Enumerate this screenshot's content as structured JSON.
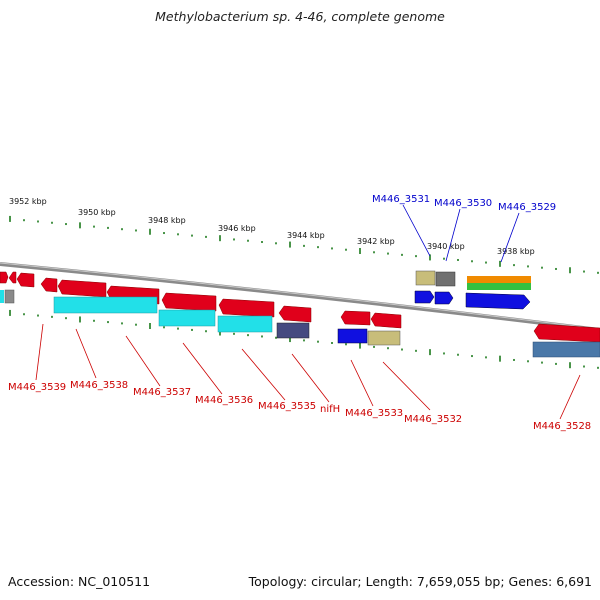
{
  "title": "Methylobacterium sp. 4-46, complete genome",
  "footer": {
    "accession": "Accession: NC_010511",
    "topology": "Topology: circular; Length: 7,659,055 bp; Genes: 6,691"
  },
  "scale_labels": [
    "3952 kbp",
    "3950 kbp",
    "3948 kbp",
    "3946 kbp",
    "3944 kbp",
    "3942 kbp",
    "3940 kbp",
    "3938 kbp"
  ],
  "gene_labels_red": [
    "M446_3539",
    "M446_3538",
    "M446_3537",
    "M446_3536",
    "M446_3535",
    "nifH",
    "M446_3533",
    "M446_3532",
    "M446_3528"
  ],
  "gene_labels_blue": [
    "M446_3531",
    "M446_3530",
    "M446_3529"
  ],
  "colors": {
    "forward_label": "#0000cc",
    "reverse_label": "#cc0000",
    "tick": "#1b7a1b",
    "backbone": "#8a8a8a",
    "cds_red": "#e0001b",
    "cds_blue": "#1010e0",
    "feature_cyan": "#22e0e8",
    "feature_navy": "#454a80",
    "feature_khaki": "#c8bd7a",
    "feature_gray": "#707070",
    "feature_orange": "#f08a00",
    "feature_green": "#35c040",
    "feature_steel": "#4a78a8"
  }
}
